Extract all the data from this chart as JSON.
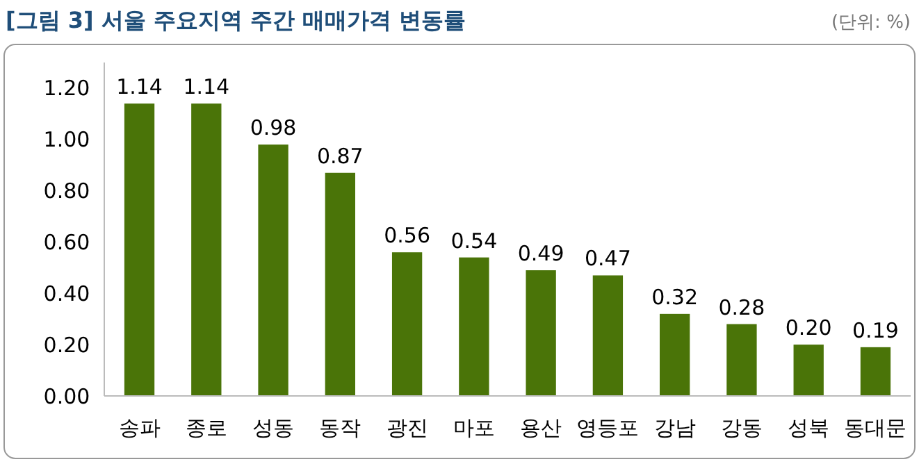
{
  "chart_data": {
    "type": "bar",
    "title": "[그림 3] 서울 주요지역 주간 매매가격 변동률",
    "annotations": [
      "(단위: %)"
    ],
    "categories": [
      "송파",
      "종로",
      "성동",
      "동작",
      "광진",
      "마포",
      "용산",
      "영등포",
      "강남",
      "강동",
      "성북",
      "동대문"
    ],
    "values": [
      1.14,
      1.14,
      0.98,
      0.87,
      0.56,
      0.54,
      0.49,
      0.47,
      0.32,
      0.28,
      0.2,
      0.19
    ],
    "value_labels": [
      "1.14",
      "1.14",
      "0.98",
      "0.87",
      "0.56",
      "0.54",
      "0.49",
      "0.47",
      "0.32",
      "0.28",
      "0.20",
      "0.19"
    ],
    "color": "#4a7408",
    "ylim": [
      0,
      1.3
    ],
    "yticks": [
      {
        "value": 0,
        "label": "0.00"
      },
      {
        "value": 0.2,
        "label": "0.20"
      },
      {
        "value": 0.4,
        "label": "0.40"
      },
      {
        "value": 0.6,
        "label": "0.60"
      },
      {
        "value": 0.8,
        "label": "0.80"
      },
      {
        "value": 1,
        "label": "1.00"
      },
      {
        "value": 1.2,
        "label": "1.20"
      }
    ]
  }
}
